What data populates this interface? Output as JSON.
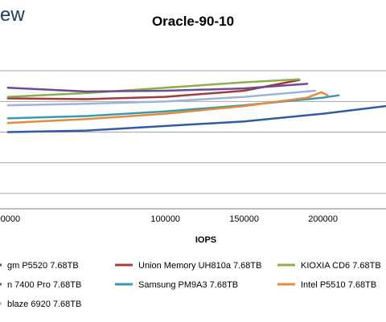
{
  "logo_text": "ew",
  "chart_data": {
    "type": "line",
    "title": "Oracle-90-10",
    "xlabel": "IOPS",
    "ylabel": "",
    "xlim": [
      -5000,
      240000
    ],
    "ylim": [
      0,
      11
    ],
    "x_ticks": [
      0,
      50000,
      100000,
      150000,
      200000
    ],
    "x_tick_labels": [
      "00000",
      "",
      "100000",
      "150000",
      "200000"
    ],
    "grid": true,
    "legend_placement": "bottom",
    "series": [
      {
        "name": "gm P5520 7.68TB",
        "color": "#2e5aa8",
        "x": [
          0,
          50000,
          100000,
          150000,
          200000,
          240000
        ],
        "y": [
          5.0,
          5.1,
          5.4,
          5.7,
          6.2,
          6.7
        ]
      },
      {
        "name": "Union Memory UH810a 7.68TB",
        "color": "#a33b3b",
        "x": [
          0,
          50000,
          100000,
          150000,
          185000
        ],
        "y": [
          7.2,
          7.15,
          7.3,
          7.7,
          8.4
        ]
      },
      {
        "name": "KIOXIA CD6 7.68TB",
        "color": "#8caf4a",
        "x": [
          0,
          50000,
          100000,
          150000,
          185000
        ],
        "y": [
          7.3,
          7.55,
          7.9,
          8.25,
          8.45
        ]
      },
      {
        "name": "n 7400 Pro 7.68TB",
        "color": "#6a4c93",
        "x": [
          0,
          50000,
          100000,
          150000,
          190000
        ],
        "y": [
          7.9,
          7.65,
          7.7,
          7.85,
          8.15
        ]
      },
      {
        "name": "Samsung PM9A3 7.68TB",
        "color": "#3a99b2",
        "x": [
          0,
          50000,
          100000,
          150000,
          200000,
          210000
        ],
        "y": [
          5.9,
          6.05,
          6.35,
          6.75,
          7.25,
          7.4
        ]
      },
      {
        "name": "Intel P5510 7.68TB",
        "color": "#e68a3c",
        "x": [
          0,
          50000,
          100000,
          150000,
          190000,
          199000,
          203000
        ],
        "y": [
          5.6,
          5.85,
          6.2,
          6.7,
          7.25,
          7.6,
          7.4
        ]
      },
      {
        "name": "blaze 6920 7.68TB",
        "color": "#9db3d8",
        "x": [
          0,
          50000,
          100000,
          150000,
          195000
        ],
        "y": [
          6.75,
          6.85,
          7.0,
          7.3,
          7.7
        ]
      }
    ]
  }
}
